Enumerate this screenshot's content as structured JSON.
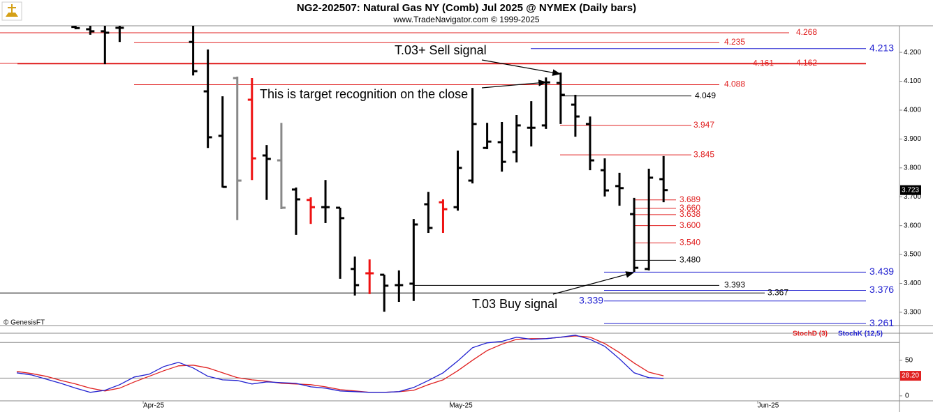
{
  "chart_data": [
    {
      "type": "ohlc",
      "title": "NG2-202507:  Natural Gas NY (Comb) Jul 2025 @ NYMEX  (Daily bars)",
      "subtitle": "www.TradeNavigator.com © 1999-2025",
      "source": "© GenesisFT",
      "ylim": [
        3.254,
        4.292
      ],
      "yticks": [
        {
          "value": 3.3,
          "label": "3.300"
        },
        {
          "value": 3.4,
          "label": "3.400"
        },
        {
          "value": 3.5,
          "label": "3.500"
        },
        {
          "value": 3.6,
          "label": "3.600"
        },
        {
          "value": 3.7,
          "label": "3.700"
        },
        {
          "value": 3.8,
          "label": "3.800"
        },
        {
          "value": 3.9,
          "label": "3.900"
        },
        {
          "value": 4.0,
          "label": "4.000"
        },
        {
          "value": 4.1,
          "label": "4.100"
        },
        {
          "value": 4.2,
          "label": "4.200"
        }
      ],
      "series": [
        {
          "open": [
            null,
            null,
            null,
            null,
            4.288,
            4.28,
            4.273,
            4.285,
            null,
            null,
            null,
            null,
            4.236,
            4.065,
            3.911,
            4.111,
            4.036,
            3.843,
            3.826,
            3.725,
            3.689,
            3.664,
            3.662,
            3.45,
            3.435,
            3.43,
            3.394,
            3.399,
            3.674,
            3.681,
            3.664,
            3.756,
            3.869,
            3.889,
            3.855,
            3.939,
            3.947,
            4.094,
            4.019,
            3.952,
            3.792,
            3.737,
            3.64,
            3.45,
            3.761
          ],
          "high": [
            null,
            null,
            null,
            null,
            4.292,
            4.292,
            4.292,
            4.292,
            null,
            null,
            null,
            null,
            4.292,
            4.21,
            4.048,
            4.116,
            4.111,
            3.879,
            3.956,
            3.732,
            3.698,
            3.758,
            3.662,
            3.493,
            3.483,
            3.43,
            3.445,
            3.623,
            3.717,
            3.691,
            3.86,
            4.077,
            3.956,
            3.959,
            3.983,
            4.031,
            4.113,
            4.13,
            4.053,
            3.978,
            3.833,
            3.783,
            3.696,
            3.797,
            3.841
          ],
          "low": [
            null,
            null,
            null,
            null,
            4.28,
            4.261,
            4.159,
            4.236,
            null,
            null,
            null,
            null,
            4.12,
            3.869,
            3.732,
            3.619,
            3.758,
            3.689,
            3.657,
            3.568,
            3.606,
            3.609,
            3.416,
            3.358,
            3.363,
            3.302,
            3.336,
            3.339,
            3.575,
            3.575,
            3.652,
            3.746,
            3.865,
            3.787,
            3.819,
            3.874,
            3.935,
            3.952,
            3.908,
            3.792,
            3.701,
            3.669,
            3.44,
            3.445,
            3.681
          ],
          "close": [
            null,
            null,
            null,
            null,
            4.284,
            4.273,
            4.268,
            4.285,
            null,
            null,
            null,
            null,
            4.135,
            3.906,
            3.734,
            3.756,
            3.833,
            3.831,
            3.662,
            3.691,
            3.664,
            3.664,
            3.626,
            3.394,
            3.435,
            3.392,
            3.394,
            3.604,
            3.592,
            3.657,
            3.8,
            3.952,
            3.891,
            3.821,
            3.947,
            3.939,
            4.096,
            4.053,
            3.978,
            3.826,
            3.722,
            3.73,
            3.454,
            3.766,
            3.723
          ],
          "colors": [
            null,
            null,
            null,
            null,
            "#000000",
            "#000000",
            "#000000",
            "#000000",
            null,
            null,
            null,
            null,
            "#000000",
            "#000000",
            "#000000",
            "#888888",
            "#ee1111",
            "#000000",
            "#888888",
            "#000000",
            "#ee1111",
            "#000000",
            "#000000",
            "#000000",
            "#ee1111",
            "#000000",
            "#000000",
            "#000000",
            "#000000",
            "#ee1111",
            "#000000",
            "#000000",
            "#000000",
            "#000000",
            "#000000",
            "#000000",
            "#000000",
            "#000000",
            "#000000",
            "#000000",
            "#000000",
            "#000000",
            "#000000",
            "#000000",
            "#000000"
          ],
          "last_label": "3.723"
        }
      ],
      "levels": [
        {
          "value": 4.268,
          "color": "#e02020"
        },
        {
          "value": 4.235,
          "color": "#e02020"
        },
        {
          "value": 4.213,
          "color": "#2020d0"
        },
        {
          "value": 4.161,
          "color": "#e02020"
        },
        {
          "value": 4.162,
          "color": "#e02020"
        },
        {
          "value": 4.088,
          "color": "#e02020"
        },
        {
          "value": 4.049,
          "color": "#000000"
        },
        {
          "value": 3.947,
          "color": "#e02020"
        },
        {
          "value": 3.845,
          "color": "#e02020"
        },
        {
          "value": 3.689,
          "color": "#e02020"
        },
        {
          "value": 3.66,
          "label": "3.660",
          "color": "#e02020"
        },
        {
          "value": 3.638,
          "color": "#e02020"
        },
        {
          "value": 3.6,
          "label": "3.600",
          "color": "#e02020"
        },
        {
          "value": 3.54,
          "label": "3.540",
          "color": "#e02020"
        },
        {
          "value": 3.48,
          "label": "3.480",
          "color": "#000000"
        },
        {
          "value": 3.439,
          "color": "#2020d0"
        },
        {
          "value": 3.393,
          "color": "#000000"
        },
        {
          "value": 3.376,
          "color": "#2020d0"
        },
        {
          "value": 3.367,
          "color": "#000000"
        },
        {
          "value": 3.339,
          "color": "#2020d0"
        },
        {
          "value": 3.261,
          "color": "#2020d0"
        }
      ],
      "annotations": [
        "T.03+ Sell signal",
        "This is target recognition on the close",
        "T.03 Buy signal"
      ]
    },
    {
      "type": "line",
      "ylim": [
        -7,
        88
      ],
      "yticks": [
        0,
        50
      ],
      "reference_lines": [
        75,
        25
      ],
      "x_labels": [
        "Apr-25",
        "May-25",
        "Jun-25"
      ],
      "series": [
        {
          "name": "StochD (3)",
          "color": "#e02020",
          "last_label": "28.20",
          "values": [
            34.3,
            31.4,
            27.5,
            21.6,
            16.7,
            10.8,
            6.9,
            10.8,
            19.6,
            27.5,
            35.3,
            42.2,
            43.1,
            39.2,
            32.4,
            25.5,
            22.5,
            20.6,
            17.6,
            16.7,
            15.7,
            12.7,
            8.8,
            6.9,
            4.9,
            4.9,
            5.9,
            7.8,
            15.7,
            22.5,
            35.3,
            50.0,
            63.7,
            72.5,
            79.4,
            80.4,
            80.4,
            82.4,
            84.3,
            82.4,
            73.5,
            60.8,
            46.1,
            33.3,
            28.2
          ]
        },
        {
          "name": "StochK (12,5)",
          "color": "#2020d0",
          "values": [
            32.4,
            29.4,
            23.5,
            17.6,
            10.8,
            4.9,
            7.8,
            15.7,
            26.5,
            30.4,
            41.2,
            47.1,
            39.2,
            27.5,
            22.5,
            21.6,
            16.7,
            19.6,
            18.6,
            17.6,
            12.7,
            10.8,
            6.9,
            5.9,
            4.9,
            4.9,
            5.9,
            11.8,
            21.6,
            32.4,
            49.0,
            67.6,
            74.5,
            76.5,
            82.4,
            79.4,
            80.4,
            82.4,
            85.3,
            79.4,
            69.6,
            52.0,
            32.4,
            25.5,
            24.5
          ]
        }
      ]
    }
  ]
}
